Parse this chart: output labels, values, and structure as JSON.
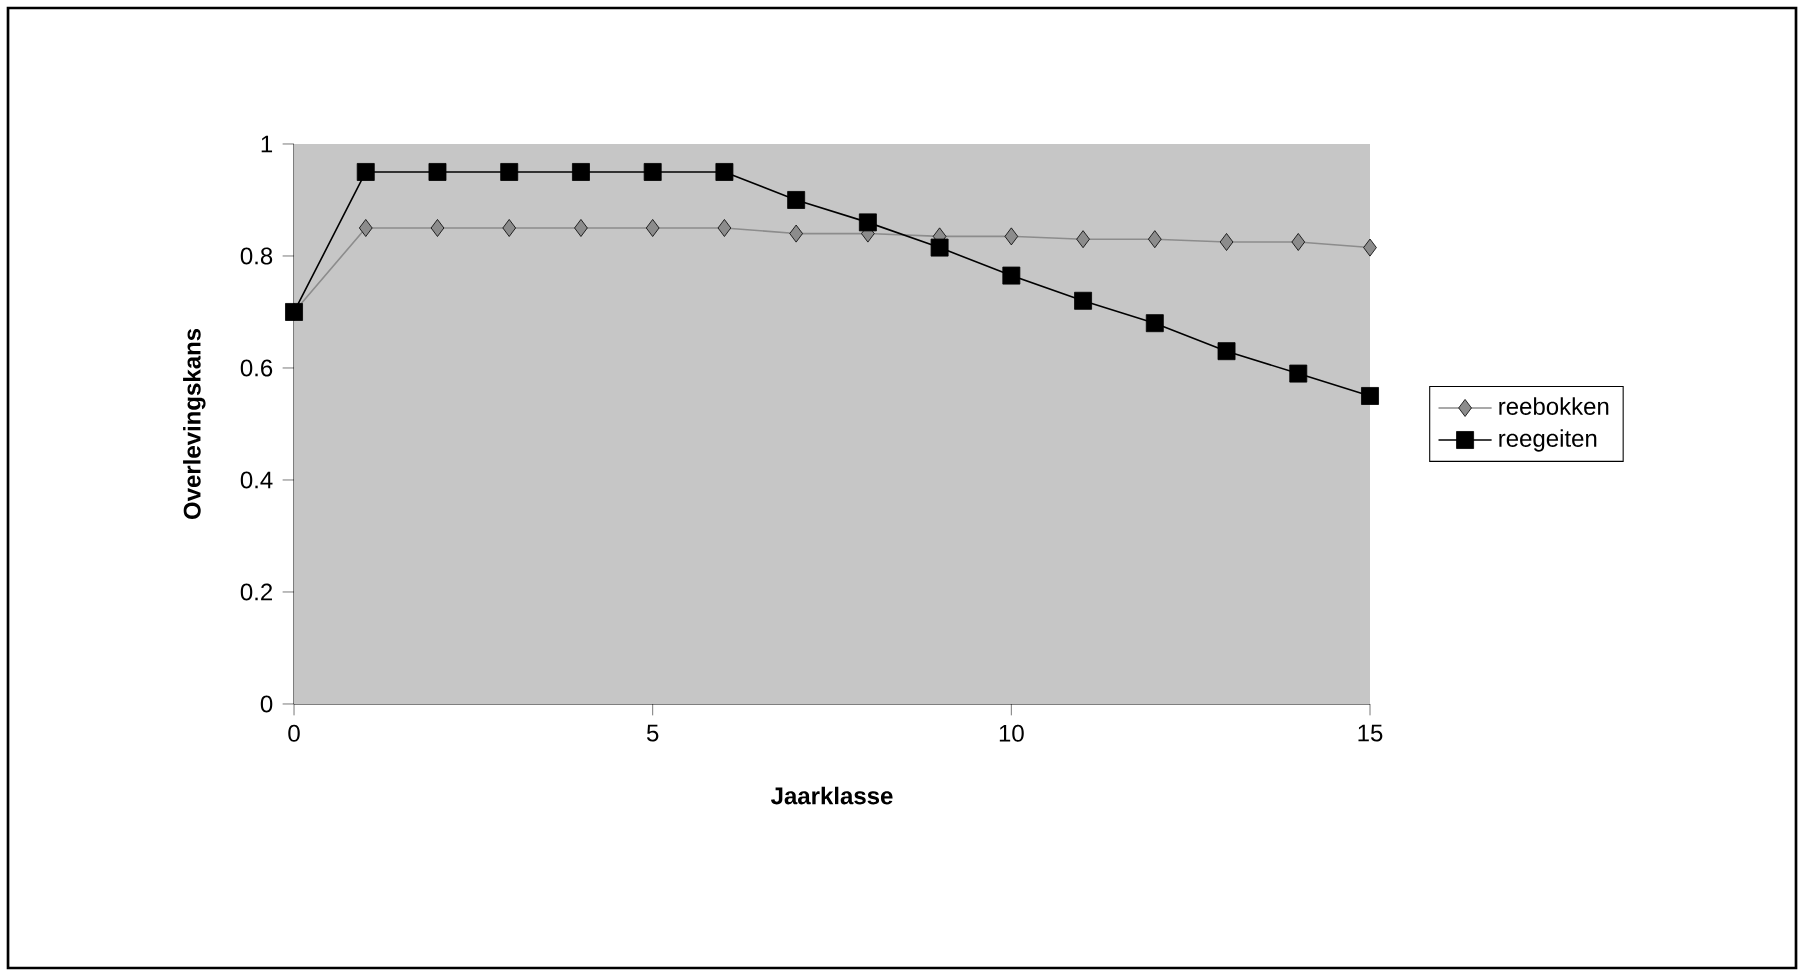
{
  "chart_data": {
    "type": "line",
    "xlabel": "Jaarklasse",
    "ylabel": "Overlevingskans",
    "x": [
      0,
      1,
      2,
      3,
      4,
      5,
      6,
      7,
      8,
      9,
      10,
      11,
      12,
      13,
      14,
      15
    ],
    "series": [
      {
        "name": "reebokken",
        "color": "#8c8c8c",
        "marker": "diamond",
        "values": [
          0.7,
          0.85,
          0.85,
          0.85,
          0.85,
          0.85,
          0.85,
          0.84,
          0.84,
          0.835,
          0.835,
          0.83,
          0.83,
          0.825,
          0.825,
          0.815
        ]
      },
      {
        "name": "reegeiten",
        "color": "#000000",
        "marker": "square",
        "values": [
          0.7,
          0.95,
          0.95,
          0.95,
          0.95,
          0.95,
          0.95,
          0.9,
          0.86,
          0.815,
          0.765,
          0.72,
          0.68,
          0.63,
          0.59,
          0.55
        ]
      }
    ],
    "xlim": [
      0,
      15
    ],
    "xticks": [
      0,
      5,
      10,
      15
    ],
    "ylim": [
      0,
      1
    ],
    "yticks": [
      0,
      0.2,
      0.4,
      0.6,
      0.8,
      1
    ],
    "grid": false,
    "legend": "right",
    "line_style": "solid"
  }
}
